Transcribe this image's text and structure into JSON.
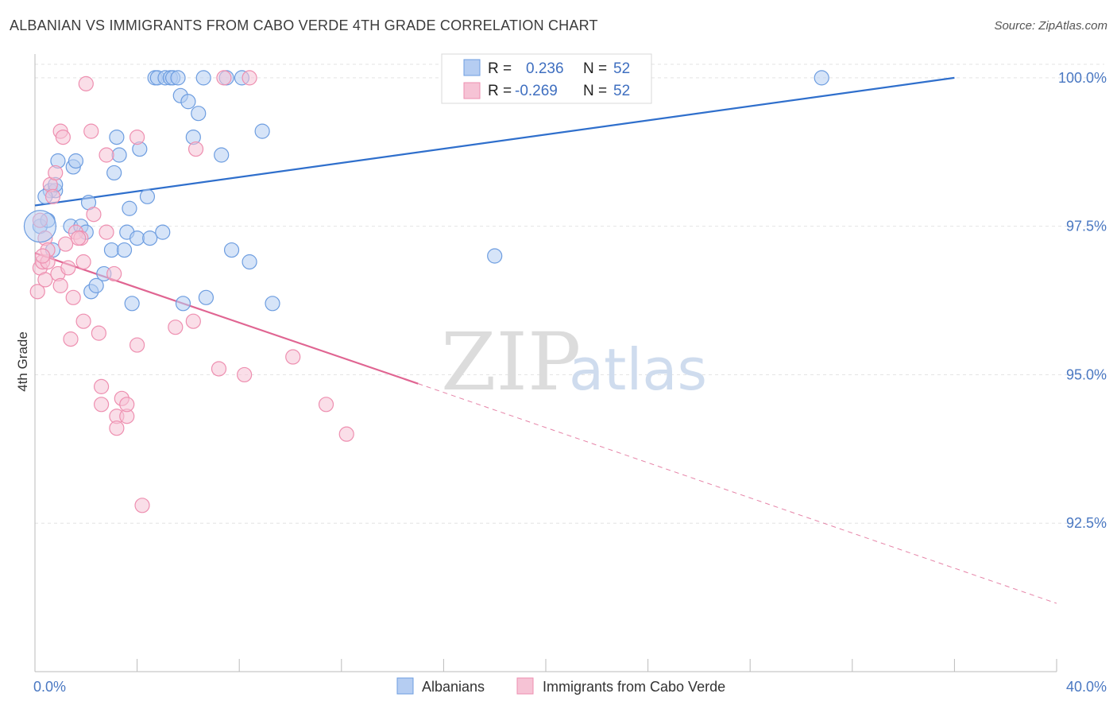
{
  "title": "ALBANIAN VS IMMIGRANTS FROM CABO VERDE 4TH GRADE CORRELATION CHART",
  "source": "Source: ZipAtlas.com",
  "colors": {
    "blue": "#6d9de0",
    "blue_fill": "#b5cdf2",
    "blue_line": "#2f6fcc",
    "pink": "#ee8fb0",
    "pink_fill": "#f6c3d5",
    "pink_line": "#e06592",
    "tick": "#4a78c2"
  },
  "watermark": {
    "zip": "ZIP",
    "atlas": "atlas"
  },
  "legend_top": {
    "rows": [
      {
        "r_label": "R =",
        "r_value": "0.236",
        "n_label": "N =",
        "n_value": "52"
      },
      {
        "r_label": "R =",
        "r_value": "-0.269",
        "n_label": "N =",
        "n_value": "52"
      }
    ]
  },
  "chart_data": {
    "type": "scatter",
    "title": "ALBANIAN VS IMMIGRANTS FROM CABO VERDE 4TH GRADE CORRELATION CHART",
    "xlabel": "",
    "ylabel": "4th Grade",
    "xlim": [
      0,
      40
    ],
    "ylim": [
      90.0,
      100.4
    ],
    "x_tick_labels": [
      "0.0%",
      "40.0%"
    ],
    "y_ticks": [
      92.5,
      95.0,
      97.5,
      100.0
    ],
    "y_tick_labels": [
      "92.5%",
      "95.0%",
      "97.5%",
      "100.0%"
    ],
    "grid": true,
    "legend_placement": "bottom",
    "series": [
      {
        "name": "Albanians",
        "R": 0.236,
        "N": 52,
        "trend": {
          "x0": 0.0,
          "y0": 97.85,
          "x1": 36.0,
          "y1": 100.0
        },
        "points": [
          [
            0.2,
            97.5
          ],
          [
            0.6,
            98.1
          ],
          [
            0.8,
            98.1
          ],
          [
            0.8,
            98.2
          ],
          [
            0.9,
            98.6
          ],
          [
            1.4,
            97.5
          ],
          [
            1.5,
            98.5
          ],
          [
            1.6,
            98.6
          ],
          [
            1.8,
            97.5
          ],
          [
            2.0,
            97.4
          ],
          [
            2.1,
            97.9
          ],
          [
            2.2,
            96.4
          ],
          [
            2.4,
            96.5
          ],
          [
            2.7,
            96.7
          ],
          [
            3.0,
            97.1
          ],
          [
            3.1,
            98.4
          ],
          [
            3.2,
            99.0
          ],
          [
            3.3,
            98.7
          ],
          [
            3.5,
            97.1
          ],
          [
            3.6,
            97.4
          ],
          [
            3.7,
            97.8
          ],
          [
            3.8,
            96.2
          ],
          [
            4.0,
            97.3
          ],
          [
            4.1,
            98.8
          ],
          [
            4.4,
            98.0
          ],
          [
            4.5,
            97.3
          ],
          [
            4.7,
            100.0
          ],
          [
            4.8,
            100.0
          ],
          [
            5.0,
            97.4
          ],
          [
            5.1,
            100.0
          ],
          [
            5.3,
            100.0
          ],
          [
            5.4,
            100.0
          ],
          [
            5.6,
            100.0
          ],
          [
            5.7,
            99.7
          ],
          [
            5.8,
            96.2
          ],
          [
            6.0,
            99.6
          ],
          [
            6.2,
            99.0
          ],
          [
            6.4,
            99.4
          ],
          [
            6.6,
            100.0
          ],
          [
            6.7,
            96.3
          ],
          [
            7.3,
            98.7
          ],
          [
            7.5,
            100.0
          ],
          [
            7.7,
            97.1
          ],
          [
            8.1,
            100.0
          ],
          [
            8.4,
            96.9
          ],
          [
            8.9,
            99.1
          ],
          [
            9.3,
            96.2
          ],
          [
            0.5,
            97.6
          ],
          [
            0.4,
            98.0
          ],
          [
            0.7,
            97.1
          ],
          [
            18.0,
            97.0
          ],
          [
            30.8,
            100.0
          ]
        ]
      },
      {
        "name": "Immigrants from Cabo Verde",
        "R": -0.269,
        "N": 52,
        "trend": {
          "x0": 0.0,
          "y0": 97.05,
          "x1": 15.0,
          "y1": 94.85,
          "dash_x1": 40.0,
          "dash_y1": 91.15
        },
        "points": [
          [
            0.1,
            96.4
          ],
          [
            0.2,
            97.6
          ],
          [
            0.2,
            96.8
          ],
          [
            0.3,
            96.9
          ],
          [
            0.4,
            97.3
          ],
          [
            0.4,
            96.6
          ],
          [
            0.5,
            96.9
          ],
          [
            0.5,
            97.1
          ],
          [
            0.6,
            98.2
          ],
          [
            0.7,
            98.0
          ],
          [
            0.8,
            98.4
          ],
          [
            0.9,
            96.7
          ],
          [
            1.0,
            99.1
          ],
          [
            1.0,
            96.5
          ],
          [
            1.1,
            99.0
          ],
          [
            1.2,
            97.2
          ],
          [
            1.3,
            96.8
          ],
          [
            1.4,
            95.6
          ],
          [
            1.5,
            96.3
          ],
          [
            1.6,
            97.4
          ],
          [
            1.8,
            97.3
          ],
          [
            1.9,
            96.9
          ],
          [
            1.9,
            95.9
          ],
          [
            2.0,
            99.9
          ],
          [
            2.2,
            99.1
          ],
          [
            2.3,
            97.7
          ],
          [
            2.5,
            95.7
          ],
          [
            2.6,
            94.5
          ],
          [
            2.6,
            94.8
          ],
          [
            2.8,
            98.7
          ],
          [
            2.8,
            97.4
          ],
          [
            3.1,
            96.7
          ],
          [
            3.2,
            94.3
          ],
          [
            3.2,
            94.1
          ],
          [
            3.4,
            94.6
          ],
          [
            3.6,
            94.3
          ],
          [
            3.6,
            94.5
          ],
          [
            4.0,
            99.0
          ],
          [
            4.0,
            95.5
          ],
          [
            4.2,
            92.8
          ],
          [
            5.5,
            95.8
          ],
          [
            6.2,
            95.9
          ],
          [
            6.3,
            98.8
          ],
          [
            7.2,
            95.1
          ],
          [
            7.4,
            100.0
          ],
          [
            8.2,
            95.0
          ],
          [
            8.4,
            100.0
          ],
          [
            10.1,
            95.3
          ],
          [
            11.4,
            94.5
          ],
          [
            12.2,
            94.0
          ],
          [
            0.3,
            97.0
          ],
          [
            1.7,
            97.3
          ]
        ]
      }
    ]
  },
  "bottom_legend": {
    "items": [
      {
        "label": "Albanians"
      },
      {
        "label": "Immigrants from Cabo Verde"
      }
    ]
  }
}
